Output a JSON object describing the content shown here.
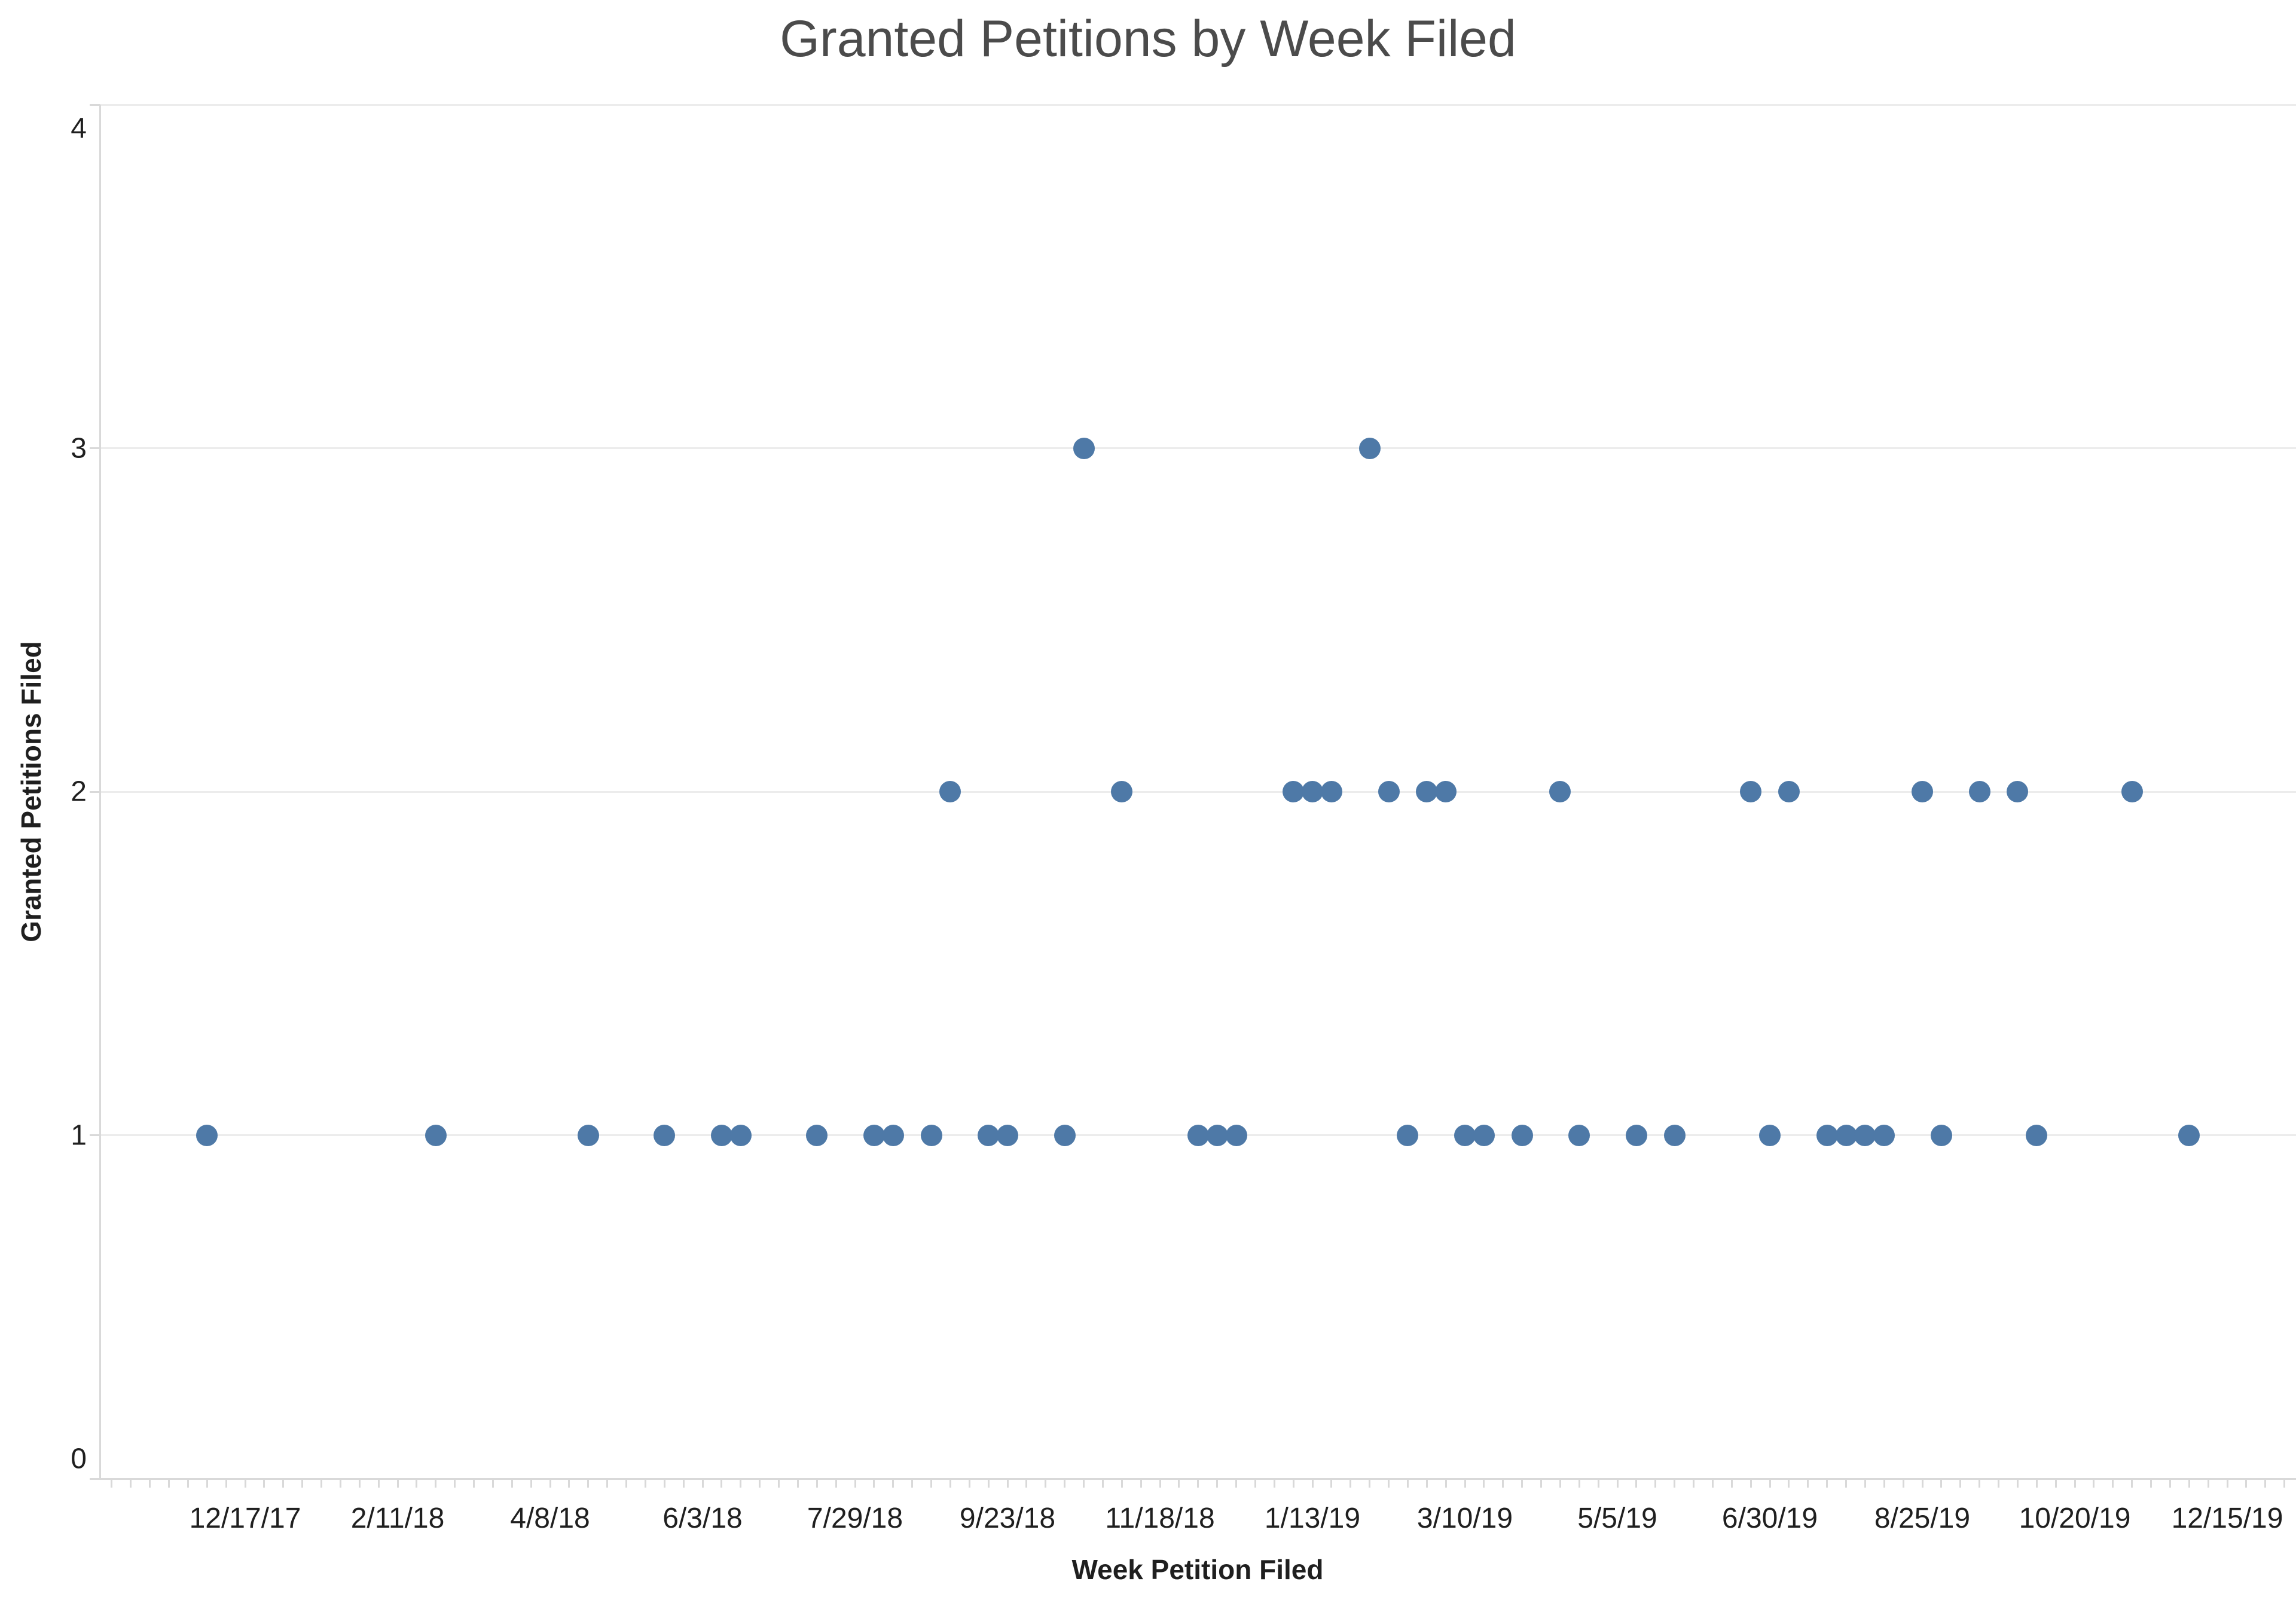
{
  "chart_data": {
    "type": "scatter",
    "title": "Granted Petitions by Week Filed",
    "xlabel": "Week Petition Filed",
    "ylabel": "Granted Petitions Filed",
    "ylim": [
      0,
      4
    ],
    "grid": "horizontal gridlines on",
    "legend_position": "none",
    "marker_color": "#4e79a7",
    "gridline_color": "#ececec",
    "axis_line_color": "#d9d9d9",
    "title_color": "#4b4b4b",
    "label_color": "#1f1f1f",
    "y_ticks": [
      0,
      1,
      2,
      3,
      4
    ],
    "x_ticks": [
      {
        "label": "12/17/17",
        "week": 0
      },
      {
        "label": "2/11/18",
        "week": 8
      },
      {
        "label": "4/8/18",
        "week": 16
      },
      {
        "label": "6/3/18",
        "week": 24
      },
      {
        "label": "7/29/18",
        "week": 32
      },
      {
        "label": "9/23/18",
        "week": 40
      },
      {
        "label": "11/18/18",
        "week": 48
      },
      {
        "label": "1/13/19",
        "week": 56
      },
      {
        "label": "3/10/19",
        "week": 64
      },
      {
        "label": "5/5/19",
        "week": 72
      },
      {
        "label": "6/30/19",
        "week": 80
      },
      {
        "label": "8/25/19",
        "week": 88
      },
      {
        "label": "10/20/19",
        "week": 96
      },
      {
        "label": "12/15/19",
        "week": 104
      }
    ],
    "points": [
      {
        "date": "12/3/17",
        "week": -2,
        "granted": 1
      },
      {
        "date": "2/25/18",
        "week": 10,
        "granted": 1
      },
      {
        "date": "4/22/18",
        "week": 18,
        "granted": 1
      },
      {
        "date": "5/20/18",
        "week": 22,
        "granted": 1
      },
      {
        "date": "6/10/18",
        "week": 25,
        "granted": 1
      },
      {
        "date": "6/17/18",
        "week": 26,
        "granted": 1
      },
      {
        "date": "7/15/18",
        "week": 30,
        "granted": 1
      },
      {
        "date": "8/5/18",
        "week": 33,
        "granted": 1
      },
      {
        "date": "8/12/18",
        "week": 34,
        "granted": 1
      },
      {
        "date": "8/26/18",
        "week": 36,
        "granted": 1
      },
      {
        "date": "9/2/18",
        "week": 37,
        "granted": 2
      },
      {
        "date": "9/16/18",
        "week": 39,
        "granted": 1
      },
      {
        "date": "9/23/18",
        "week": 40,
        "granted": 1
      },
      {
        "date": "10/14/18",
        "week": 43,
        "granted": 1
      },
      {
        "date": "10/21/18",
        "week": 44,
        "granted": 3
      },
      {
        "date": "11/4/18",
        "week": 46,
        "granted": 2
      },
      {
        "date": "12/2/18",
        "week": 50,
        "granted": 1
      },
      {
        "date": "12/9/18",
        "week": 51,
        "granted": 1
      },
      {
        "date": "12/16/18",
        "week": 52,
        "granted": 1
      },
      {
        "date": "1/6/19",
        "week": 55,
        "granted": 2
      },
      {
        "date": "1/13/19",
        "week": 56,
        "granted": 2
      },
      {
        "date": "1/20/19",
        "week": 57,
        "granted": 2
      },
      {
        "date": "2/3/19",
        "week": 59,
        "granted": 3
      },
      {
        "date": "2/10/19",
        "week": 60,
        "granted": 2
      },
      {
        "date": "2/17/19",
        "week": 61,
        "granted": 1
      },
      {
        "date": "2/24/19",
        "week": 62,
        "granted": 2
      },
      {
        "date": "3/3/19",
        "week": 63,
        "granted": 2
      },
      {
        "date": "3/10/19",
        "week": 64,
        "granted": 1
      },
      {
        "date": "3/17/19",
        "week": 65,
        "granted": 1
      },
      {
        "date": "3/31/19",
        "week": 67,
        "granted": 1
      },
      {
        "date": "4/14/19",
        "week": 69,
        "granted": 2
      },
      {
        "date": "4/21/19",
        "week": 70,
        "granted": 1
      },
      {
        "date": "5/12/19",
        "week": 73,
        "granted": 1
      },
      {
        "date": "5/26/19",
        "week": 75,
        "granted": 1
      },
      {
        "date": "6/23/19",
        "week": 79,
        "granted": 2
      },
      {
        "date": "6/30/19",
        "week": 80,
        "granted": 1
      },
      {
        "date": "7/7/19",
        "week": 81,
        "granted": 2
      },
      {
        "date": "7/21/19",
        "week": 83,
        "granted": 1
      },
      {
        "date": "7/28/19",
        "week": 84,
        "granted": 1
      },
      {
        "date": "8/4/19",
        "week": 85,
        "granted": 1
      },
      {
        "date": "8/11/19",
        "week": 86,
        "granted": 1
      },
      {
        "date": "8/25/19",
        "week": 88,
        "granted": 2
      },
      {
        "date": "9/1/19",
        "week": 89,
        "granted": 1
      },
      {
        "date": "9/15/19",
        "week": 91,
        "granted": 2
      },
      {
        "date": "9/29/19",
        "week": 93,
        "granted": 2
      },
      {
        "date": "10/6/19",
        "week": 94,
        "granted": 1
      },
      {
        "date": "11/10/19",
        "week": 99,
        "granted": 2
      },
      {
        "date": "12/1/19",
        "week": 102,
        "granted": 1
      }
    ]
  }
}
